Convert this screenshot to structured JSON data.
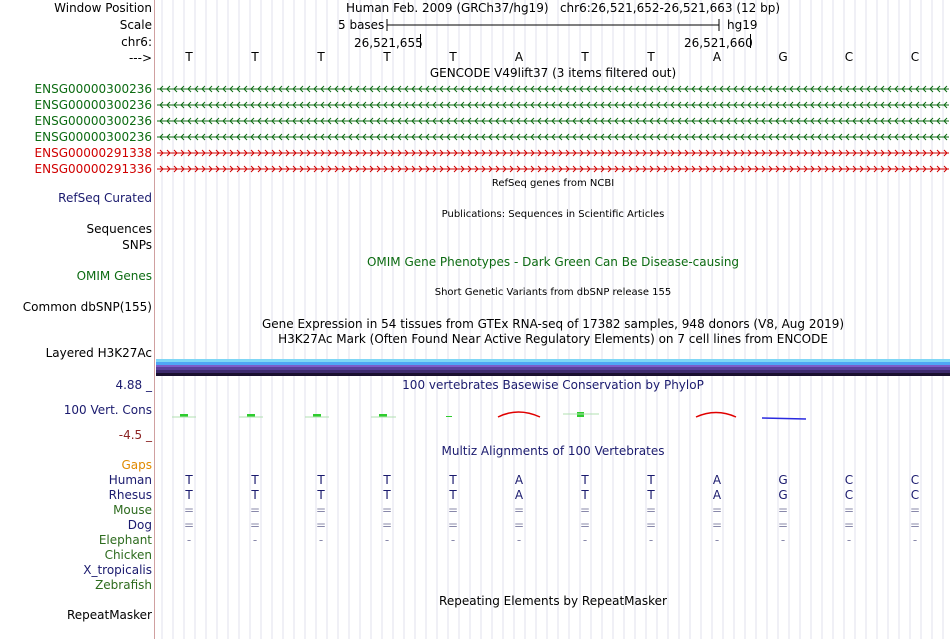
{
  "header": {
    "window_position_label": "Window Position",
    "window_position_value": "Human Feb. 2009 (GRCh37/hg19)   chr6:26,521,652-26,521,663 (12 bp)",
    "scale_label": "Scale",
    "scale_bar_text": "5 bases",
    "assembly": "hg19",
    "chrom_label": "chr6:",
    "pos_left": "26,521,655",
    "pos_right": "26,521,660",
    "strand_label": "--->",
    "bases": [
      "T",
      "T",
      "T",
      "T",
      "T",
      "A",
      "T",
      "T",
      "A",
      "G",
      "C",
      "C"
    ]
  },
  "gencode": {
    "title": "GENCODE V49lift37 (3 items filtered out)",
    "genes": [
      {
        "name": "ENSG00000300236",
        "strand": "-",
        "color": "#0c6b12"
      },
      {
        "name": "ENSG00000300236",
        "strand": "-",
        "color": "#0c6b12"
      },
      {
        "name": "ENSG00000300236",
        "strand": "-",
        "color": "#0c6b12"
      },
      {
        "name": "ENSG00000300236",
        "strand": "-",
        "color": "#0c6b12"
      },
      {
        "name": "ENSG00000291338",
        "strand": "+",
        "color": "#d00000"
      },
      {
        "name": "ENSG00000291336",
        "strand": "+",
        "color": "#d00000"
      }
    ]
  },
  "tracks": {
    "refseq_title": "RefSeq genes from NCBI",
    "refseq_label": "RefSeq Curated",
    "publications_title": "Publications: Sequences in Scientific Articles",
    "sequences_label": "Sequences",
    "snps_label": "SNPs",
    "omim_title": "OMIM Gene Phenotypes - Dark Green Can Be Disease-causing",
    "omim_label": "OMIM Genes",
    "dbsnp_title": "Short Genetic Variants from dbSNP release 155",
    "dbsnp_label": "Common dbSNP(155)",
    "gtex_title": "Gene Expression in 54 tissues from GTEx RNA-seq of 17382 samples, 948 donors (V8, Aug 2019)",
    "h3k27ac_title": "H3K27Ac Mark (Often Found Near Active Regulatory Elements) on 7 cell lines from ENCODE",
    "h3k27ac_label": "Layered H3K27Ac",
    "h3k27ac_colors": [
      "#ff8080",
      "#ffb040",
      "#e0e040",
      "#80ff80",
      "#80e0ff",
      "#4fa5f5",
      "#b9a0ff"
    ],
    "phylop_title": "100 vertebrates Basewise Conservation by PhyloP",
    "phylop_label": "100 Vert. Cons",
    "phylop_max": "4.88 _",
    "phylop_min": "-4.5 _",
    "multiz_title": "Multiz Alignments of 100 Vertebrates",
    "gaps_label": "Gaps",
    "repeatmasker_title": "Repeating Elements by RepeatMasker",
    "repeatmasker_label": "RepeatMasker"
  },
  "alignments": [
    {
      "species": "Human",
      "color": "#1a1a6e",
      "row": [
        "T",
        "T",
        "T",
        "T",
        "T",
        "A",
        "T",
        "T",
        "A",
        "G",
        "C",
        "C"
      ]
    },
    {
      "species": "Rhesus",
      "color": "#1a1a6e",
      "row": [
        "T",
        "T",
        "T",
        "T",
        "T",
        "A",
        "T",
        "T",
        "A",
        "G",
        "C",
        "C"
      ]
    },
    {
      "species": "Mouse",
      "color": "#2d6b1e",
      "row": [
        "=",
        "=",
        "=",
        "=",
        "=",
        "=",
        "=",
        "=",
        "=",
        "=",
        "=",
        "="
      ]
    },
    {
      "species": "Dog",
      "color": "#1a1a6e",
      "row": [
        "=",
        "=",
        "=",
        "=",
        "=",
        "=",
        "=",
        "=",
        "=",
        "=",
        "=",
        "="
      ]
    },
    {
      "species": "Elephant",
      "color": "#2d6b1e",
      "row": [
        "-",
        "-",
        "-",
        "-",
        "-",
        "-",
        "-",
        "-",
        "-",
        "-",
        "-",
        "-"
      ]
    },
    {
      "species": "Chicken",
      "color": "#2d6b1e",
      "row": []
    },
    {
      "species": "X_tropicalis",
      "color": "#1a1a6e",
      "row": []
    },
    {
      "species": "Zebrafish",
      "color": "#2d6b1e",
      "row": []
    }
  ],
  "colors": {
    "track_label_blue": "#1a1a6e",
    "track_label_green": "#0c6b12",
    "gaps_orange": "#e08a00",
    "phylop_min_color": "#8b2323"
  }
}
